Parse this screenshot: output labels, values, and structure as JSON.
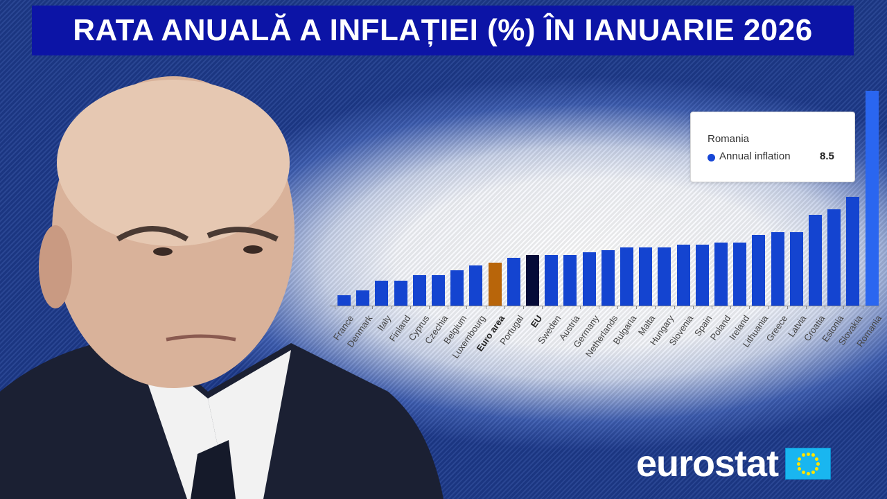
{
  "header": {
    "title": "RATA ANUALĂ A INFLAȚIEI (%) ÎN IANUARIE 2026"
  },
  "tooltip": {
    "country": "Romania",
    "series": "Annual inflation",
    "value": "8.5",
    "dot_color": "#1746d6"
  },
  "branding": {
    "logo_text": "eurostat",
    "flag_icon": "eu-flag-icon"
  },
  "photo": {
    "description": "portrait-of-bald-man-in-suit"
  },
  "colors": {
    "bar": "#1444d0",
    "bar_highlight": "#2a66f0",
    "euro_area": "#b8650a",
    "eu": "#050b38",
    "title_bg": "#0c14a6"
  },
  "chart_data": {
    "type": "bar",
    "title": "Annual inflation (%) January 2026",
    "xlabel": "",
    "ylabel": "Annual inflation",
    "ylim": [
      0,
      8.5
    ],
    "grid": false,
    "legend": "tooltip",
    "categories": [
      "France",
      "Denmark",
      "Italy",
      "Finland",
      "Cyprus",
      "Czechia",
      "Belgium",
      "Luxembourg",
      "Euro area",
      "Portugal",
      "EU",
      "Sweden",
      "Austria",
      "Germany",
      "Netherlands",
      "Bulgaria",
      "Malta",
      "Hungary",
      "Slovenia",
      "Spain",
      "Poland",
      "Ireland",
      "Lithuania",
      "Greece",
      "Latvia",
      "Croatia",
      "Estonia",
      "Slovakia",
      "Romania"
    ],
    "series": [
      {
        "name": "Annual inflation",
        "values": [
          0.4,
          0.6,
          1.0,
          1.0,
          1.2,
          1.2,
          1.4,
          1.6,
          1.7,
          1.9,
          2.0,
          2.0,
          2.0,
          2.1,
          2.2,
          2.3,
          2.3,
          2.3,
          2.4,
          2.4,
          2.5,
          2.5,
          2.8,
          2.9,
          2.9,
          3.6,
          3.8,
          4.3,
          8.5
        ]
      }
    ],
    "bold_categories": [
      "Euro area",
      "EU"
    ],
    "highlight": "Romania"
  }
}
